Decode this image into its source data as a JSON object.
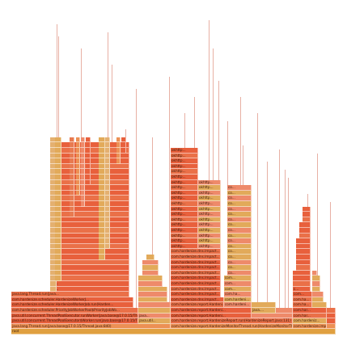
{
  "colors": {
    "root": "#e0a040",
    "red": "#e8603c",
    "orange": "#ec9054",
    "salmon": "#ee8a6a",
    "yellow": "#e2aa5a",
    "tan": "#e4b070",
    "sliver": "#e8b0a4"
  },
  "rows": [
    [
      {
        "x": 14,
        "w": 401,
        "c": "root",
        "t": "root"
      }
    ],
    [
      {
        "x": 14,
        "w": 197,
        "c": "orange",
        "t": "java.lang.Thread.run(java.base@17.0.15/Thread.java:840)"
      },
      {
        "x": 211,
        "w": 151,
        "c": "orange",
        "t": "com.hardenize.report.HardenizeMonitorThread.run(HardenizeMonitorThread.j..."
      },
      {
        "x": 362,
        "w": 42,
        "c": "orange",
        "t": "com.hardenize.imp..."
      },
      {
        "x": 404,
        "w": 11,
        "c": "orange",
        "t": ""
      }
    ],
    [
      {
        "x": 14,
        "w": 157,
        "c": "red",
        "t": "java.util.concurrent.ThreadPoolExecutor$Worker.run(java.base@17.0.15/ThreadPo..."
      },
      {
        "x": 171,
        "w": 40,
        "c": "salmon",
        "t": "java.util..."
      },
      {
        "x": 211,
        "w": 151,
        "c": "red",
        "t": "com.hardenize.report.HardenizeReport.run(HardenizeReport.java:131)"
      },
      {
        "x": 362,
        "w": 42,
        "c": "salmon",
        "t": "com.hardeniz..."
      },
      {
        "x": 404,
        "w": 11,
        "c": "red",
        "t": ""
      }
    ],
    [
      {
        "x": 14,
        "w": 157,
        "c": "red",
        "t": "java.util.concurrent.ThreadPoolExecutor.runWorker(java.base@17.0.15/Th..."
      },
      {
        "x": 171,
        "w": 40,
        "c": "salmon",
        "t": "java..."
      },
      {
        "x": 211,
        "w": 100,
        "c": "red",
        "t": "com.hardenize.report.Hardeni..."
      },
      {
        "x": 311,
        "w": 51,
        "c": "salmon",
        "t": ""
      },
      {
        "x": 362,
        "w": 42,
        "c": "red",
        "t": "com.har..."
      },
      {
        "x": 404,
        "w": 11,
        "c": "red",
        "t": ""
      }
    ],
    [
      {
        "x": 14,
        "w": 157,
        "c": "red",
        "t": "com.hardenize.scheduler.PriorityJobWorkerPool$PriorityJobWo..."
      },
      {
        "x": 171,
        "w": 40,
        "c": "salmon",
        "t": ""
      },
      {
        "x": 211,
        "w": 100,
        "c": "red",
        "t": "com.hardenize.report.Hardeni..."
      },
      {
        "x": 311,
        "w": 30,
        "c": "salmon",
        "t": "java...."
      },
      {
        "x": 341,
        "w": 21,
        "c": "salmon",
        "t": ""
      },
      {
        "x": 362,
        "w": 42,
        "c": "red",
        "t": "com.har..."
      },
      {
        "x": 404,
        "w": 11,
        "c": "red",
        "t": ""
      }
    ],
    [
      {
        "x": 14,
        "w": 151,
        "c": "red",
        "t": "com.hardenize.scheduler.HardenizeWorkerJob.run(Harden..."
      },
      {
        "x": 171,
        "w": 40,
        "c": "salmon",
        "t": ""
      },
      {
        "x": 211,
        "w": 66,
        "c": "red",
        "t": "com.hardenize.report.Hardeni..."
      },
      {
        "x": 277,
        "w": 34,
        "c": "salmon",
        "t": "com.hardeni..."
      },
      {
        "x": 311,
        "w": 30,
        "c": "salmon",
        "t": ""
      },
      {
        "x": 362,
        "w": 24,
        "c": "red",
        "t": "com.ha..."
      },
      {
        "x": 386,
        "w": 18,
        "c": "salmon",
        "t": ""
      }
    ],
    [
      {
        "x": 14,
        "w": 151,
        "c": "red",
        "t": "com.hardenize.scheduler.HardenizeWorkerJ..."
      },
      {
        "x": 171,
        "w": 36,
        "c": "salmon",
        "t": ""
      },
      {
        "x": 211,
        "w": 66,
        "c": "red",
        "t": "com.hardenize.dns.Impact..."
      },
      {
        "x": 277,
        "w": 34,
        "c": "salmon",
        "t": "com.hardeni..."
      },
      {
        "x": 362,
        "w": 24,
        "c": "red",
        "t": "com.ha..."
      },
      {
        "x": 386,
        "w": 14,
        "c": "salmon",
        "t": ""
      }
    ],
    [
      {
        "x": 14,
        "w": 146,
        "c": "red",
        "t": "java.lang.Thread.run(java..."
      },
      {
        "x": 171,
        "w": 36,
        "c": "salmon",
        "t": ""
      },
      {
        "x": 211,
        "w": 62,
        "c": "red",
        "t": "com.hardenize.dns.Impact..."
      },
      {
        "x": 277,
        "w": 34,
        "c": "salmon",
        "t": "com.ha..."
      },
      {
        "x": 362,
        "w": 24,
        "c": "red",
        "t": "com..."
      },
      {
        "x": 386,
        "w": 14,
        "c": "salmon",
        "t": ""
      }
    ],
    [
      {
        "x": 62,
        "w": 98,
        "c": "red",
        "t": "de..."
      },
      {
        "x": 171,
        "w": 36,
        "c": "salmon",
        "t": ""
      },
      {
        "x": 211,
        "w": 62,
        "c": "red",
        "t": "com.hardenize.dns.Impact..."
      },
      {
        "x": 277,
        "w": 34,
        "c": "salmon",
        "t": "com..."
      },
      {
        "x": 362,
        "w": 22,
        "c": "red",
        "t": "c..."
      },
      {
        "x": 386,
        "w": 10,
        "c": "salmon",
        "t": ""
      }
    ],
    [
      {
        "x": 62,
        "w": 98,
        "c": "red",
        "t": "de..."
      },
      {
        "x": 171,
        "w": 30,
        "c": "salmon",
        "t": ""
      },
      {
        "x": 211,
        "w": 62,
        "c": "red",
        "t": "com.hardenize.dns.Impact..."
      },
      {
        "x": 277,
        "w": 34,
        "c": "salmon",
        "t": "com..."
      },
      {
        "x": 362,
        "w": 22,
        "c": "red",
        "t": ""
      },
      {
        "x": 386,
        "w": 10,
        "c": "salmon",
        "t": ""
      }
    ],
    [
      {
        "x": 62,
        "w": 98,
        "c": "red",
        "t": "de..."
      },
      {
        "x": 171,
        "w": 30,
        "c": "salmon",
        "t": ""
      },
      {
        "x": 211,
        "w": 62,
        "c": "red",
        "t": "com.hardenize.dns.Impact..."
      },
      {
        "x": 277,
        "w": 34,
        "c": "salmon",
        "t": "com..."
      },
      {
        "x": 362,
        "w": 22,
        "c": "red",
        "t": ""
      },
      {
        "x": 386,
        "w": 10,
        "c": "salmon",
        "t": ""
      }
    ],
    [
      {
        "x": 62,
        "w": 98,
        "c": "red",
        "t": "de..."
      },
      {
        "x": 176,
        "w": 20,
        "c": "salmon",
        "t": ""
      },
      {
        "x": 211,
        "w": 62,
        "c": "red",
        "t": "com.hardenize.dns.Impact..."
      },
      {
        "x": 281,
        "w": 30,
        "c": "salmon",
        "t": "co..."
      },
      {
        "x": 362,
        "w": 22,
        "c": "red",
        "t": ""
      },
      {
        "x": 386,
        "w": 6,
        "c": "salmon",
        "t": ""
      }
    ],
    [
      {
        "x": 62,
        "w": 98,
        "c": "red",
        "t": "de..."
      },
      {
        "x": 176,
        "w": 20,
        "c": "salmon",
        "t": ""
      },
      {
        "x": 211,
        "w": 62,
        "c": "red",
        "t": "com.hardenize.dns.Impact..."
      },
      {
        "x": 281,
        "w": 30,
        "c": "salmon",
        "t": "co..."
      },
      {
        "x": 366,
        "w": 18,
        "c": "red",
        "t": ""
      }
    ],
    [
      {
        "x": 62,
        "w": 98,
        "c": "red",
        "t": "de..."
      },
      {
        "x": 176,
        "w": 20,
        "c": "salmon",
        "t": ""
      },
      {
        "x": 211,
        "w": 62,
        "c": "red",
        "t": "com.hardenize.dns.Impact..."
      },
      {
        "x": 281,
        "w": 30,
        "c": "salmon",
        "t": "co..."
      },
      {
        "x": 366,
        "w": 18,
        "c": "red",
        "t": ""
      }
    ],
    [
      {
        "x": 62,
        "w": 98,
        "c": "red",
        "t": "de..."
      },
      {
        "x": 181,
        "w": 10,
        "c": "salmon",
        "t": ""
      },
      {
        "x": 211,
        "w": 62,
        "c": "red",
        "t": "com.hardenize.dns.Impact..."
      },
      {
        "x": 281,
        "w": 30,
        "c": "salmon",
        "t": "co..."
      },
      {
        "x": 366,
        "w": 18,
        "c": "red",
        "t": ""
      }
    ],
    [
      {
        "x": 62,
        "w": 98,
        "c": "red",
        "t": "de..."
      },
      {
        "x": 211,
        "w": 62,
        "c": "red",
        "t": "com.hardenize.dns.Impact..."
      },
      {
        "x": 281,
        "w": 30,
        "c": "salmon",
        "t": "co..."
      },
      {
        "x": 366,
        "w": 18,
        "c": "red",
        "t": ""
      }
    ],
    [
      {
        "x": 62,
        "w": 98,
        "c": "red",
        "t": "de..."
      },
      {
        "x": 211,
        "w": 34,
        "c": "red",
        "t": "okhttp..."
      },
      {
        "x": 245,
        "w": 28,
        "c": "salmon",
        "t": "okhttp..."
      },
      {
        "x": 281,
        "w": 30,
        "c": "salmon",
        "t": "co..."
      },
      {
        "x": 366,
        "w": 18,
        "c": "red",
        "t": ""
      }
    ],
    [
      {
        "x": 62,
        "w": 98,
        "c": "red",
        "t": "de..."
      },
      {
        "x": 211,
        "w": 34,
        "c": "red",
        "t": "okhttp..."
      },
      {
        "x": 245,
        "w": 28,
        "c": "salmon",
        "t": "okhttp..."
      },
      {
        "x": 281,
        "w": 30,
        "c": "salmon",
        "t": "co..."
      },
      {
        "x": 366,
        "w": 18,
        "c": "red",
        "t": ""
      }
    ],
    [
      {
        "x": 62,
        "w": 98,
        "c": "red",
        "t": "de..."
      },
      {
        "x": 211,
        "w": 34,
        "c": "red",
        "t": "okhttp..."
      },
      {
        "x": 245,
        "w": 28,
        "c": "salmon",
        "t": "okhttp..."
      },
      {
        "x": 281,
        "w": 30,
        "c": "salmon",
        "t": "co..."
      },
      {
        "x": 370,
        "w": 14,
        "c": "red",
        "t": ""
      }
    ],
    [
      {
        "x": 62,
        "w": 98,
        "c": "red",
        "t": "de..."
      },
      {
        "x": 211,
        "w": 34,
        "c": "red",
        "t": "okhttp..."
      },
      {
        "x": 245,
        "w": 28,
        "c": "salmon",
        "t": "okhttp..."
      },
      {
        "x": 281,
        "w": 30,
        "c": "salmon",
        "t": "co..."
      },
      {
        "x": 370,
        "w": 14,
        "c": "red",
        "t": ""
      }
    ],
    [
      {
        "x": 62,
        "w": 98,
        "c": "red",
        "t": "de..."
      },
      {
        "x": 211,
        "w": 34,
        "c": "red",
        "t": "okhttp..."
      },
      {
        "x": 245,
        "w": 28,
        "c": "salmon",
        "t": "okhttp..."
      },
      {
        "x": 281,
        "w": 30,
        "c": "salmon",
        "t": "co..."
      },
      {
        "x": 370,
        "w": 14,
        "c": "red",
        "t": ""
      }
    ],
    [
      {
        "x": 62,
        "w": 98,
        "c": "red",
        "t": "de..."
      },
      {
        "x": 211,
        "w": 34,
        "c": "red",
        "t": "okhttp..."
      },
      {
        "x": 245,
        "w": 28,
        "c": "salmon",
        "t": "okhttp..."
      },
      {
        "x": 281,
        "w": 30,
        "c": "salmon",
        "t": "co..."
      },
      {
        "x": 374,
        "w": 10,
        "c": "red",
        "t": ""
      }
    ],
    [
      {
        "x": 62,
        "w": 98,
        "c": "red",
        "t": "de..."
      },
      {
        "x": 211,
        "w": 34,
        "c": "red",
        "t": "okhttp..."
      },
      {
        "x": 245,
        "w": 28,
        "c": "salmon",
        "t": "okhttp..."
      },
      {
        "x": 281,
        "w": 30,
        "c": "salmon",
        "t": "co..."
      },
      {
        "x": 374,
        "w": 10,
        "c": "red",
        "t": ""
      }
    ],
    [
      {
        "x": 62,
        "w": 98,
        "c": "red",
        "t": "de..."
      },
      {
        "x": 211,
        "w": 34,
        "c": "red",
        "t": "okhttp..."
      },
      {
        "x": 245,
        "w": 28,
        "c": "salmon",
        "t": "okhttp..."
      },
      {
        "x": 281,
        "w": 30,
        "c": "salmon",
        "t": "co..."
      },
      {
        "x": 374,
        "w": 10,
        "c": "red",
        "t": ""
      }
    ],
    [
      {
        "x": 62,
        "w": 98,
        "c": "red",
        "t": "de..."
      },
      {
        "x": 211,
        "w": 34,
        "c": "red",
        "t": "okhttp..."
      },
      {
        "x": 245,
        "w": 28,
        "c": "salmon",
        "t": "okhttp..."
      },
      {
        "x": 281,
        "w": 30,
        "c": "salmon",
        "t": "co..."
      }
    ],
    [
      {
        "x": 62,
        "w": 98,
        "c": "red",
        "t": "de..."
      },
      {
        "x": 211,
        "w": 34,
        "c": "red",
        "t": "okhttp..."
      },
      {
        "x": 245,
        "w": 28,
        "c": "salmon",
        "t": "okhttp..."
      },
      {
        "x": 281,
        "w": 30,
        "c": "salmon",
        "t": "co..."
      }
    ],
    [
      {
        "x": 62,
        "w": 98,
        "c": "red",
        "t": "de..."
      },
      {
        "x": 211,
        "w": 34,
        "c": "red",
        "t": "okhttp..."
      },
      {
        "x": 245,
        "w": 28,
        "c": "salmon",
        "t": "okhttp..."
      },
      {
        "x": 281,
        "w": 30,
        "c": "salmon",
        "t": "co..."
      }
    ],
    [
      {
        "x": 62,
        "w": 98,
        "c": "red",
        "t": "de..."
      },
      {
        "x": 211,
        "w": 34,
        "c": "red",
        "t": "okhttp..."
      },
      {
        "x": 245,
        "w": 28,
        "c": "salmon",
        "t": "okhttp..."
      },
      {
        "x": 281,
        "w": 30,
        "c": "salmon",
        "t": "co..."
      }
    ],
    [
      {
        "x": 62,
        "w": 98,
        "c": "red",
        "t": "de..."
      },
      {
        "x": 211,
        "w": 34,
        "c": "red",
        "t": "okhttp..."
      },
      {
        "x": 245,
        "w": 28,
        "c": "salmon",
        "t": "okhttp..."
      }
    ],
    [
      {
        "x": 62,
        "w": 98,
        "c": "red",
        "t": "de..."
      },
      {
        "x": 211,
        "w": 34,
        "c": "red",
        "t": "okhttp..."
      }
    ],
    [
      {
        "x": 62,
        "w": 98,
        "c": "red",
        "t": "de..."
      },
      {
        "x": 211,
        "w": 34,
        "c": "red",
        "t": "okhttp..."
      }
    ],
    [
      {
        "x": 62,
        "w": 98,
        "c": "red",
        "t": "de..."
      },
      {
        "x": 211,
        "w": 34,
        "c": "red",
        "t": "okhttp..."
      }
    ],
    [
      {
        "x": 62,
        "w": 98,
        "c": "red",
        "t": "de..."
      },
      {
        "x": 211,
        "w": 34,
        "c": "red",
        "t": "okhttp..."
      }
    ],
    [
      {
        "x": 62,
        "w": 98,
        "c": "red",
        "t": "de..."
      },
      {
        "x": 211,
        "w": 34,
        "c": "red",
        "t": "okhttp..."
      }
    ],
    [
      {
        "x": 62,
        "w": 98,
        "c": "red",
        "t": "de..."
      },
      {
        "x": 211,
        "w": 34,
        "c": "red",
        "t": "okhttp..."
      }
    ],
    [
      {
        "x": 62,
        "w": 98,
        "c": "red",
        "t": "de..."
      }
    ]
  ]
}
